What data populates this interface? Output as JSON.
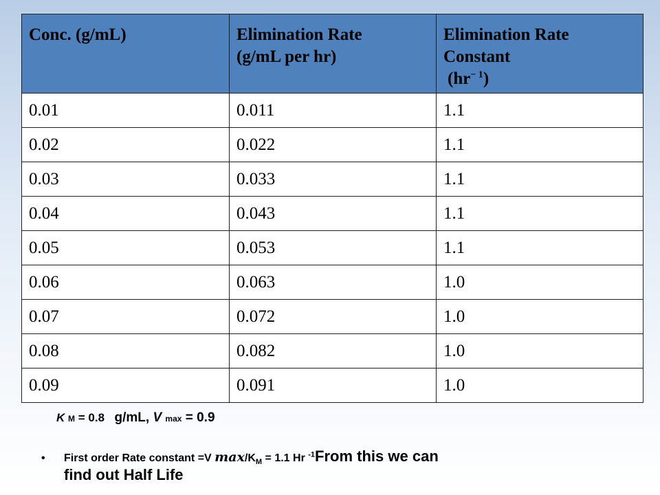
{
  "table": {
    "headers": {
      "col1": "Conc. (g/mL)",
      "col2_line1": "Elimination Rate",
      "col2_line2": "(g/mL per hr)",
      "col3_line1": "Elimination Rate",
      "col3_line2": "Constant",
      "col3_unit_prefix": "(hr",
      "col3_unit_sup": "− 1",
      "col3_unit_suffix": ")"
    },
    "rows": [
      [
        "0.01",
        "0.011",
        "1.1"
      ],
      [
        "0.02",
        "0.022",
        "1.1"
      ],
      [
        "0.03",
        "0.033",
        "1.1"
      ],
      [
        "0.04",
        "0.043",
        "1.1"
      ],
      [
        "0.05",
        "0.053",
        "1.1"
      ],
      [
        "0.06",
        "0.063",
        "1.0"
      ],
      [
        "0.07",
        "0.072",
        "1.0"
      ],
      [
        "0.08",
        "0.082",
        "1.0"
      ],
      [
        "0.09",
        "0.091",
        "1.0"
      ]
    ]
  },
  "params": {
    "km_symbol": "K",
    "km_sub": "M",
    "km_value": "= 0.8",
    "unit_text": "g/mL,",
    "vmax_symbol": "V",
    "vmax_sub": "max",
    "vmax_value": "= 0.9"
  },
  "bullet": {
    "part1": "First order Rate constant =V",
    "vmax": "max",
    "part2": "/K",
    "sub": "M",
    "part3": "= 1.1 Hr",
    "sup": "-1",
    "part4": "From this we can",
    "part5": "find out Half Life"
  },
  "colors": {
    "header_bg": "#4f81bd",
    "cell_bg": "#ffffff",
    "border": "#1f1f1f"
  }
}
